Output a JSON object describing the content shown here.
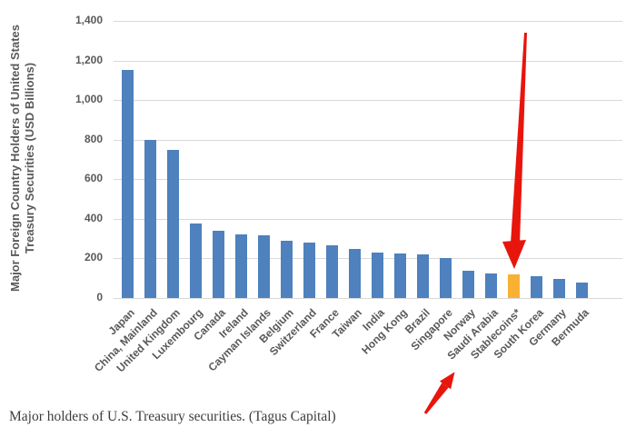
{
  "chart_data": {
    "type": "bar",
    "title": "",
    "ylabel_line1": "Major Foreign Country Holders of United States",
    "ylabel_line2": "Treasury Securities  (USD Billions)",
    "categories": [
      "Japan",
      "China, Mainland",
      "United Kingdom",
      "Luxembourg",
      "Canada",
      "Ireland",
      "Cayman Islands",
      "Belgium",
      "Switzerland",
      "France",
      "Taiwan",
      "India",
      "Hong Kong",
      "Brazil",
      "Singapore",
      "Norway",
      "Saudi Arabia",
      "Stablecoins*",
      "South Korea",
      "Germany",
      "Bermuda"
    ],
    "values": [
      1150,
      800,
      750,
      375,
      340,
      320,
      315,
      290,
      280,
      265,
      250,
      230,
      226,
      222,
      200,
      138,
      125,
      118,
      108,
      98,
      78
    ],
    "ylim": [
      0,
      1400
    ],
    "ytick_interval": 200,
    "yticks": [
      "1,400",
      "1,200",
      "1,000",
      "800",
      "600",
      "400",
      "200",
      "0"
    ],
    "grid": "horizontal-only",
    "legend": "none",
    "bar_color": "#4e81bd",
    "highlight_category": "Stablecoins*",
    "highlight_color": "#f8b133"
  },
  "annotations": {
    "down_arrow_target": "Stablecoins* bar",
    "up_arrow_target": "Stablecoins* axis label",
    "arrow_color": "#e8150c"
  },
  "caption": "Major holders of U.S. Treasury securities. (Tagus Capital)"
}
